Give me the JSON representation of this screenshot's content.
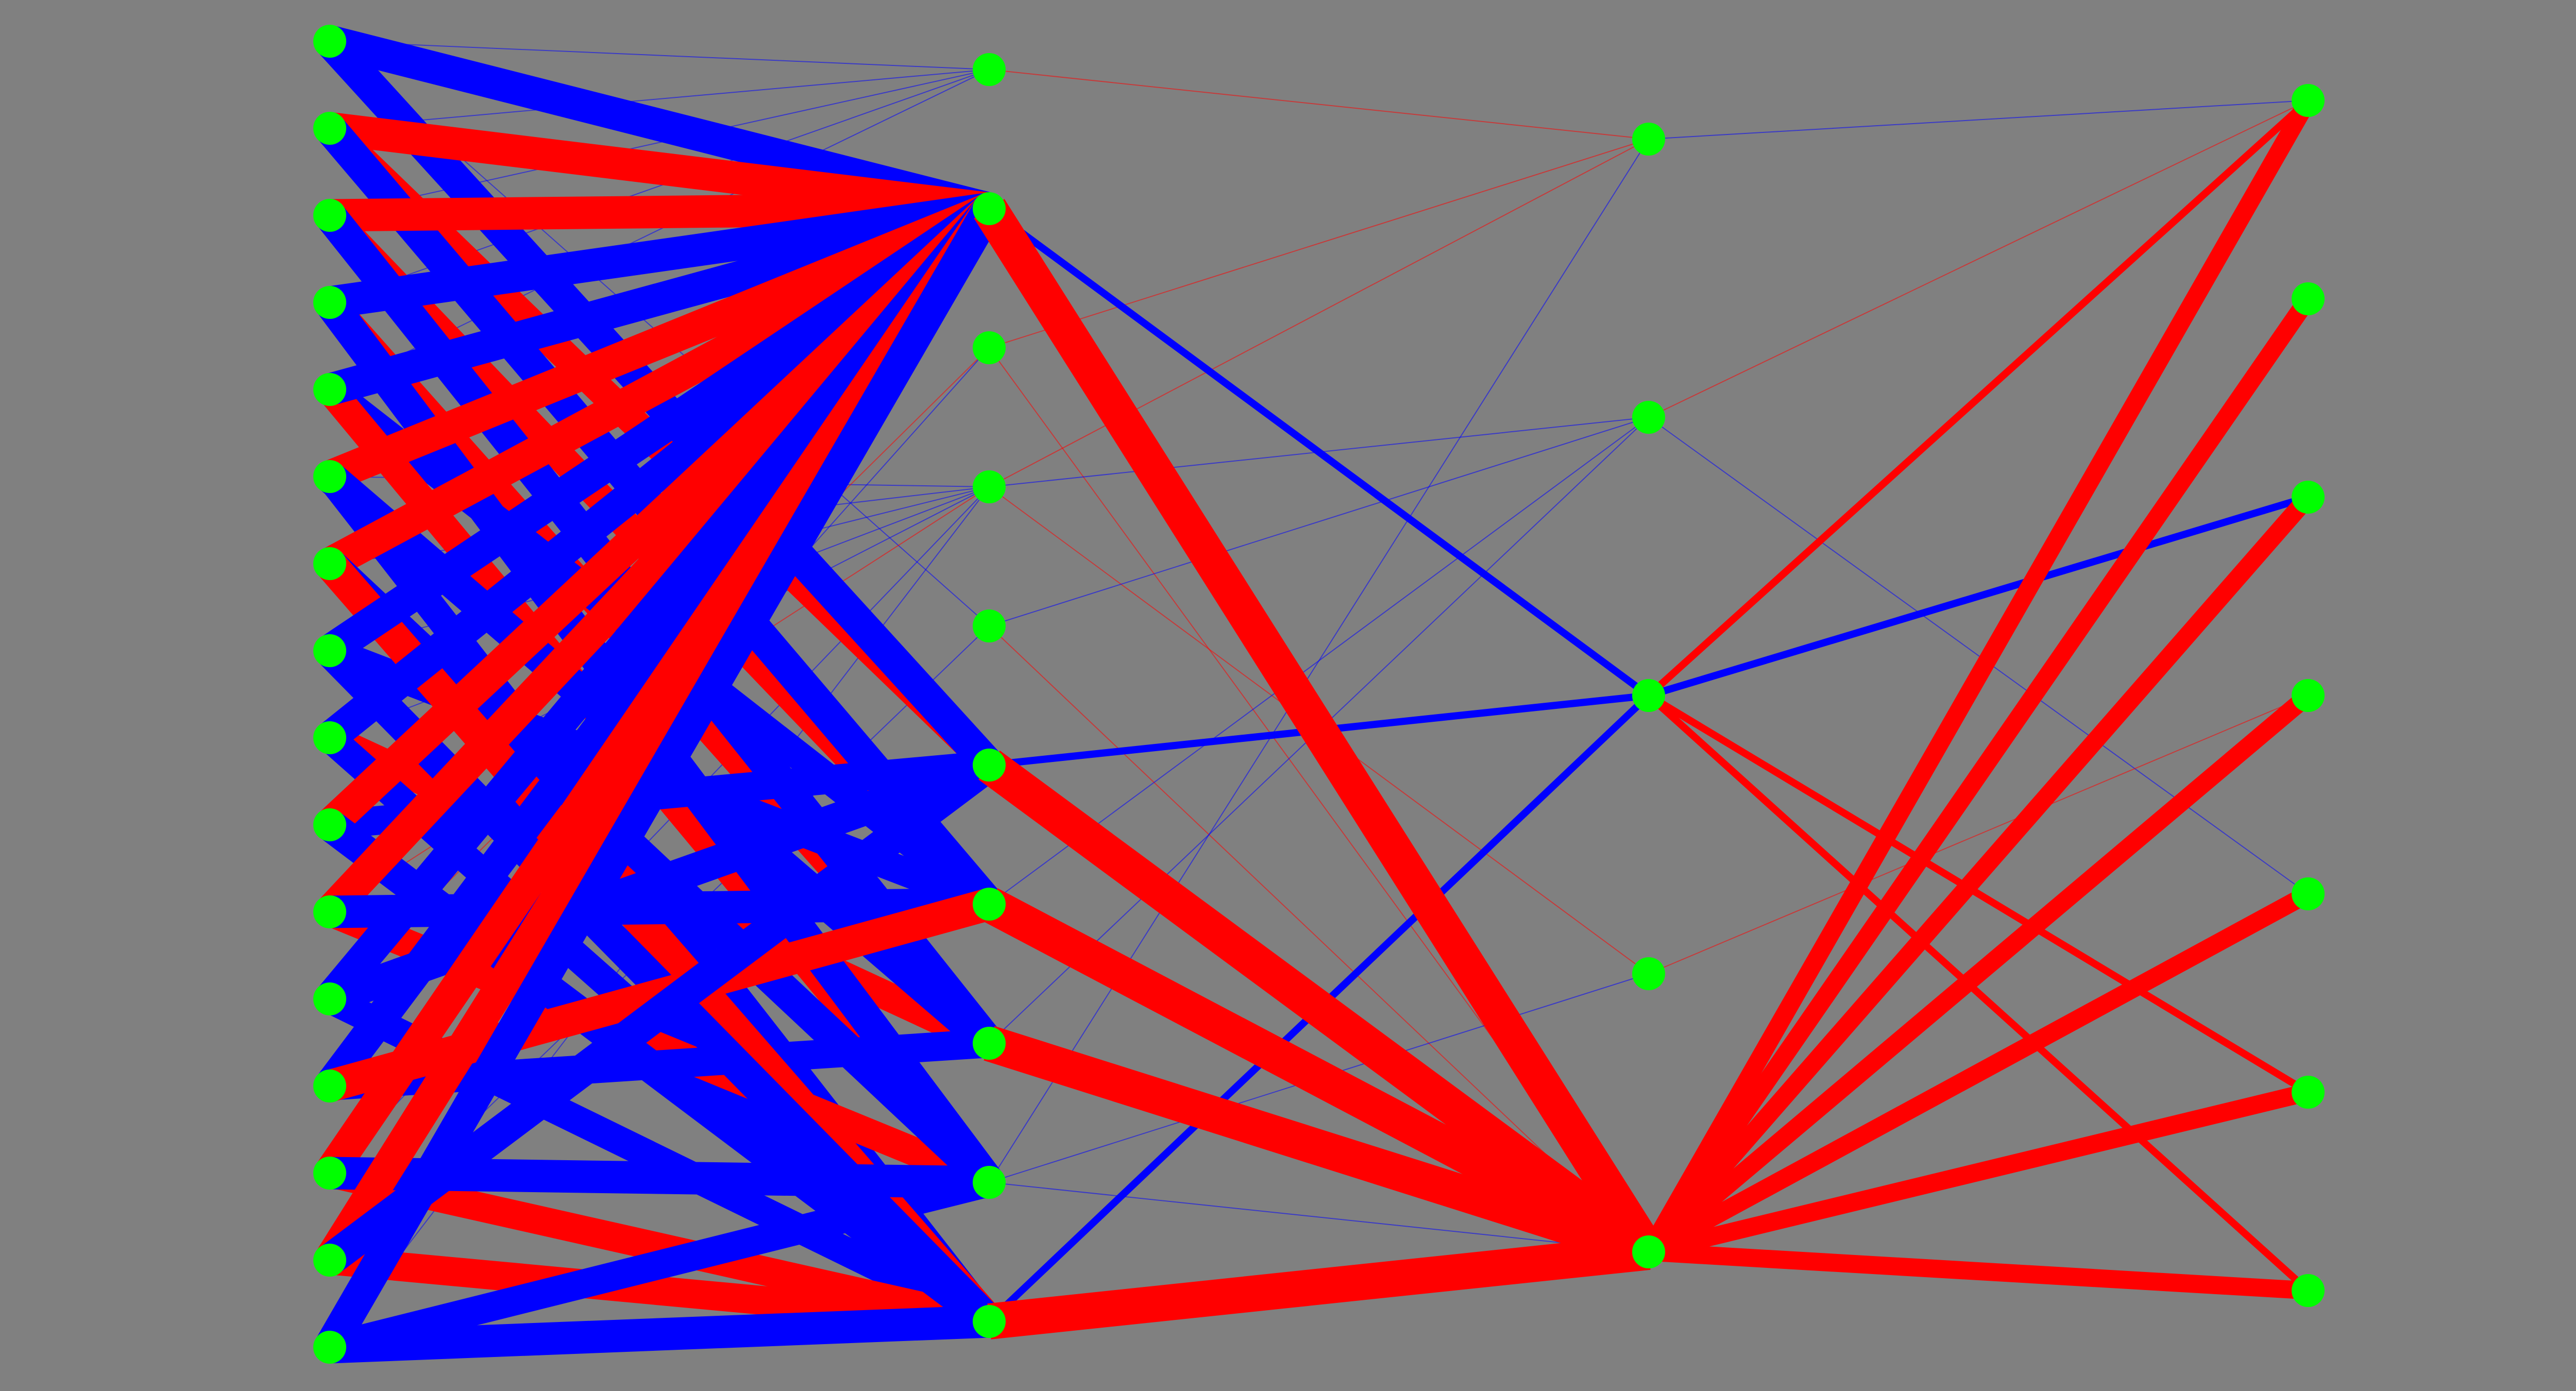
{
  "diagram": {
    "type": "neural-network",
    "background_color": "#808080",
    "node_color": "#00ff00",
    "positive_color": "#ff0000",
    "negative_color": "#0000ff",
    "layers": [
      {
        "size": 16
      },
      {
        "size": 10
      },
      {
        "size": 5
      },
      {
        "size": 7
      }
    ],
    "edges": [
      [
        0,
        0,
        1,
        0,
        -1
      ],
      [
        0,
        0,
        1,
        1,
        -9
      ],
      [
        0,
        0,
        1,
        4,
        -1
      ],
      [
        0,
        0,
        1,
        5,
        -9
      ],
      [
        0,
        1,
        1,
        0,
        -1
      ],
      [
        0,
        1,
        1,
        1,
        9
      ],
      [
        0,
        1,
        1,
        5,
        8
      ],
      [
        0,
        1,
        1,
        6,
        -9
      ],
      [
        0,
        2,
        1,
        0,
        -1
      ],
      [
        0,
        2,
        1,
        1,
        9
      ],
      [
        0,
        2,
        1,
        6,
        8
      ],
      [
        0,
        2,
        1,
        7,
        -9
      ],
      [
        0,
        3,
        1,
        0,
        -1
      ],
      [
        0,
        3,
        1,
        1,
        -9
      ],
      [
        0,
        3,
        1,
        7,
        8
      ],
      [
        0,
        3,
        1,
        8,
        -9
      ],
      [
        0,
        4,
        1,
        0,
        -1
      ],
      [
        0,
        4,
        1,
        1,
        -9
      ],
      [
        0,
        4,
        1,
        6,
        -8
      ],
      [
        0,
        4,
        1,
        8,
        8
      ],
      [
        0,
        5,
        1,
        1,
        9
      ],
      [
        0,
        5,
        1,
        3,
        -1
      ],
      [
        0,
        5,
        1,
        7,
        -9
      ],
      [
        0,
        5,
        1,
        9,
        -8
      ],
      [
        0,
        6,
        1,
        1,
        9
      ],
      [
        0,
        6,
        1,
        3,
        -1
      ],
      [
        0,
        6,
        1,
        8,
        -9
      ],
      [
        0,
        6,
        1,
        9,
        9
      ],
      [
        0,
        7,
        1,
        1,
        -9
      ],
      [
        0,
        7,
        1,
        3,
        -1
      ],
      [
        0,
        7,
        1,
        6,
        -8
      ],
      [
        0,
        7,
        1,
        9,
        -9
      ],
      [
        0,
        8,
        1,
        1,
        -9
      ],
      [
        0,
        8,
        1,
        3,
        -1
      ],
      [
        0,
        8,
        1,
        7,
        8
      ],
      [
        0,
        8,
        1,
        9,
        -8
      ],
      [
        0,
        9,
        1,
        1,
        9
      ],
      [
        0,
        9,
        1,
        3,
        -1
      ],
      [
        0,
        9,
        1,
        5,
        -8
      ],
      [
        0,
        9,
        1,
        9,
        -9
      ],
      [
        0,
        10,
        1,
        1,
        9
      ],
      [
        0,
        10,
        1,
        3,
        1
      ],
      [
        0,
        10,
        1,
        6,
        -9
      ],
      [
        0,
        10,
        1,
        8,
        8
      ],
      [
        0,
        11,
        1,
        1,
        -9
      ],
      [
        0,
        11,
        1,
        2,
        1
      ],
      [
        0,
        11,
        1,
        5,
        -9
      ],
      [
        0,
        11,
        1,
        9,
        -8
      ],
      [
        0,
        12,
        1,
        1,
        -9
      ],
      [
        0,
        12,
        1,
        2,
        -1
      ],
      [
        0,
        12,
        1,
        6,
        9
      ],
      [
        0,
        12,
        1,
        7,
        -8
      ],
      [
        0,
        13,
        1,
        1,
        9
      ],
      [
        0,
        13,
        1,
        3,
        -1
      ],
      [
        0,
        13,
        1,
        8,
        -9
      ],
      [
        0,
        13,
        1,
        9,
        8
      ],
      [
        0,
        14,
        1,
        1,
        9
      ],
      [
        0,
        14,
        1,
        4,
        -1
      ],
      [
        0,
        14,
        1,
        5,
        -9
      ],
      [
        0,
        14,
        1,
        9,
        8
      ],
      [
        0,
        15,
        1,
        1,
        -9
      ],
      [
        0,
        15,
        1,
        3,
        -1
      ],
      [
        0,
        15,
        1,
        8,
        -8
      ],
      [
        0,
        15,
        1,
        9,
        -9
      ],
      [
        1,
        0,
        2,
        0,
        1
      ],
      [
        1,
        1,
        2,
        2,
        -2
      ],
      [
        1,
        1,
        2,
        4,
        10
      ],
      [
        1,
        2,
        2,
        0,
        1
      ],
      [
        1,
        2,
        2,
        4,
        1
      ],
      [
        1,
        3,
        2,
        0,
        1
      ],
      [
        1,
        3,
        2,
        1,
        -1
      ],
      [
        1,
        3,
        2,
        3,
        1
      ],
      [
        1,
        4,
        2,
        1,
        -1
      ],
      [
        1,
        4,
        2,
        4,
        1
      ],
      [
        1,
        5,
        2,
        2,
        -2
      ],
      [
        1,
        5,
        2,
        4,
        10
      ],
      [
        1,
        6,
        2,
        1,
        -1
      ],
      [
        1,
        6,
        2,
        4,
        10
      ],
      [
        1,
        7,
        2,
        1,
        -1
      ],
      [
        1,
        7,
        2,
        4,
        10
      ],
      [
        1,
        8,
        2,
        0,
        -1
      ],
      [
        1,
        8,
        2,
        3,
        -1
      ],
      [
        1,
        8,
        2,
        4,
        -1
      ],
      [
        1,
        9,
        2,
        2,
        -2
      ],
      [
        1,
        9,
        2,
        4,
        10
      ],
      [
        2,
        0,
        3,
        0,
        -1
      ],
      [
        2,
        1,
        3,
        0,
        1
      ],
      [
        2,
        1,
        3,
        4,
        -1
      ],
      [
        2,
        2,
        3,
        0,
        2
      ],
      [
        2,
        2,
        3,
        2,
        -2
      ],
      [
        2,
        2,
        3,
        5,
        2
      ],
      [
        2,
        2,
        3,
        6,
        2
      ],
      [
        2,
        3,
        3,
        3,
        1
      ],
      [
        2,
        4,
        3,
        0,
        5
      ],
      [
        2,
        4,
        3,
        1,
        5
      ],
      [
        2,
        4,
        3,
        2,
        5
      ],
      [
        2,
        4,
        3,
        3,
        5
      ],
      [
        2,
        4,
        3,
        4,
        5
      ],
      [
        2,
        4,
        3,
        5,
        5
      ],
      [
        2,
        4,
        3,
        6,
        5
      ]
    ]
  }
}
